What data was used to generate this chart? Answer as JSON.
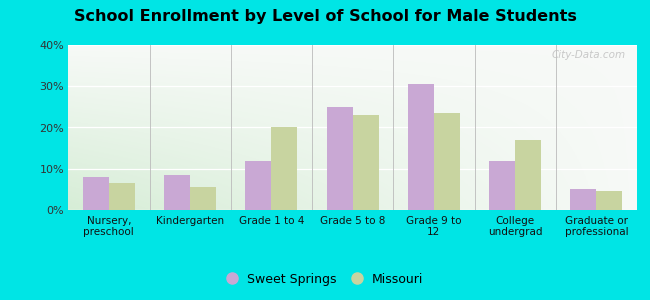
{
  "title": "School Enrollment by Level of School for Male Students",
  "categories": [
    "Nursery,\npreschool",
    "Kindergarten",
    "Grade 1 to 4",
    "Grade 5 to 8",
    "Grade 9 to\n12",
    "College\nundergrad",
    "Graduate or\nprofessional"
  ],
  "sweet_springs": [
    8.0,
    8.5,
    12.0,
    25.0,
    30.5,
    12.0,
    5.0
  ],
  "missouri": [
    6.5,
    5.5,
    20.0,
    23.0,
    23.5,
    17.0,
    4.5
  ],
  "color_sweet_springs": "#c9a8d4",
  "color_missouri": "#c8d4a0",
  "ylim": [
    0,
    40
  ],
  "yticks": [
    0,
    10,
    20,
    30,
    40
  ],
  "background_outer": "#00e5e5",
  "background_plot_topleft": "#e8f4e8",
  "background_plot_topright": "#f5f8f0",
  "background_plot_bottomleft": "#d8ecd8",
  "background_plot_bottomright": "#eef5ee",
  "legend_labels": [
    "Sweet Springs",
    "Missouri"
  ],
  "watermark": "City-Data.com",
  "bar_width": 0.32
}
